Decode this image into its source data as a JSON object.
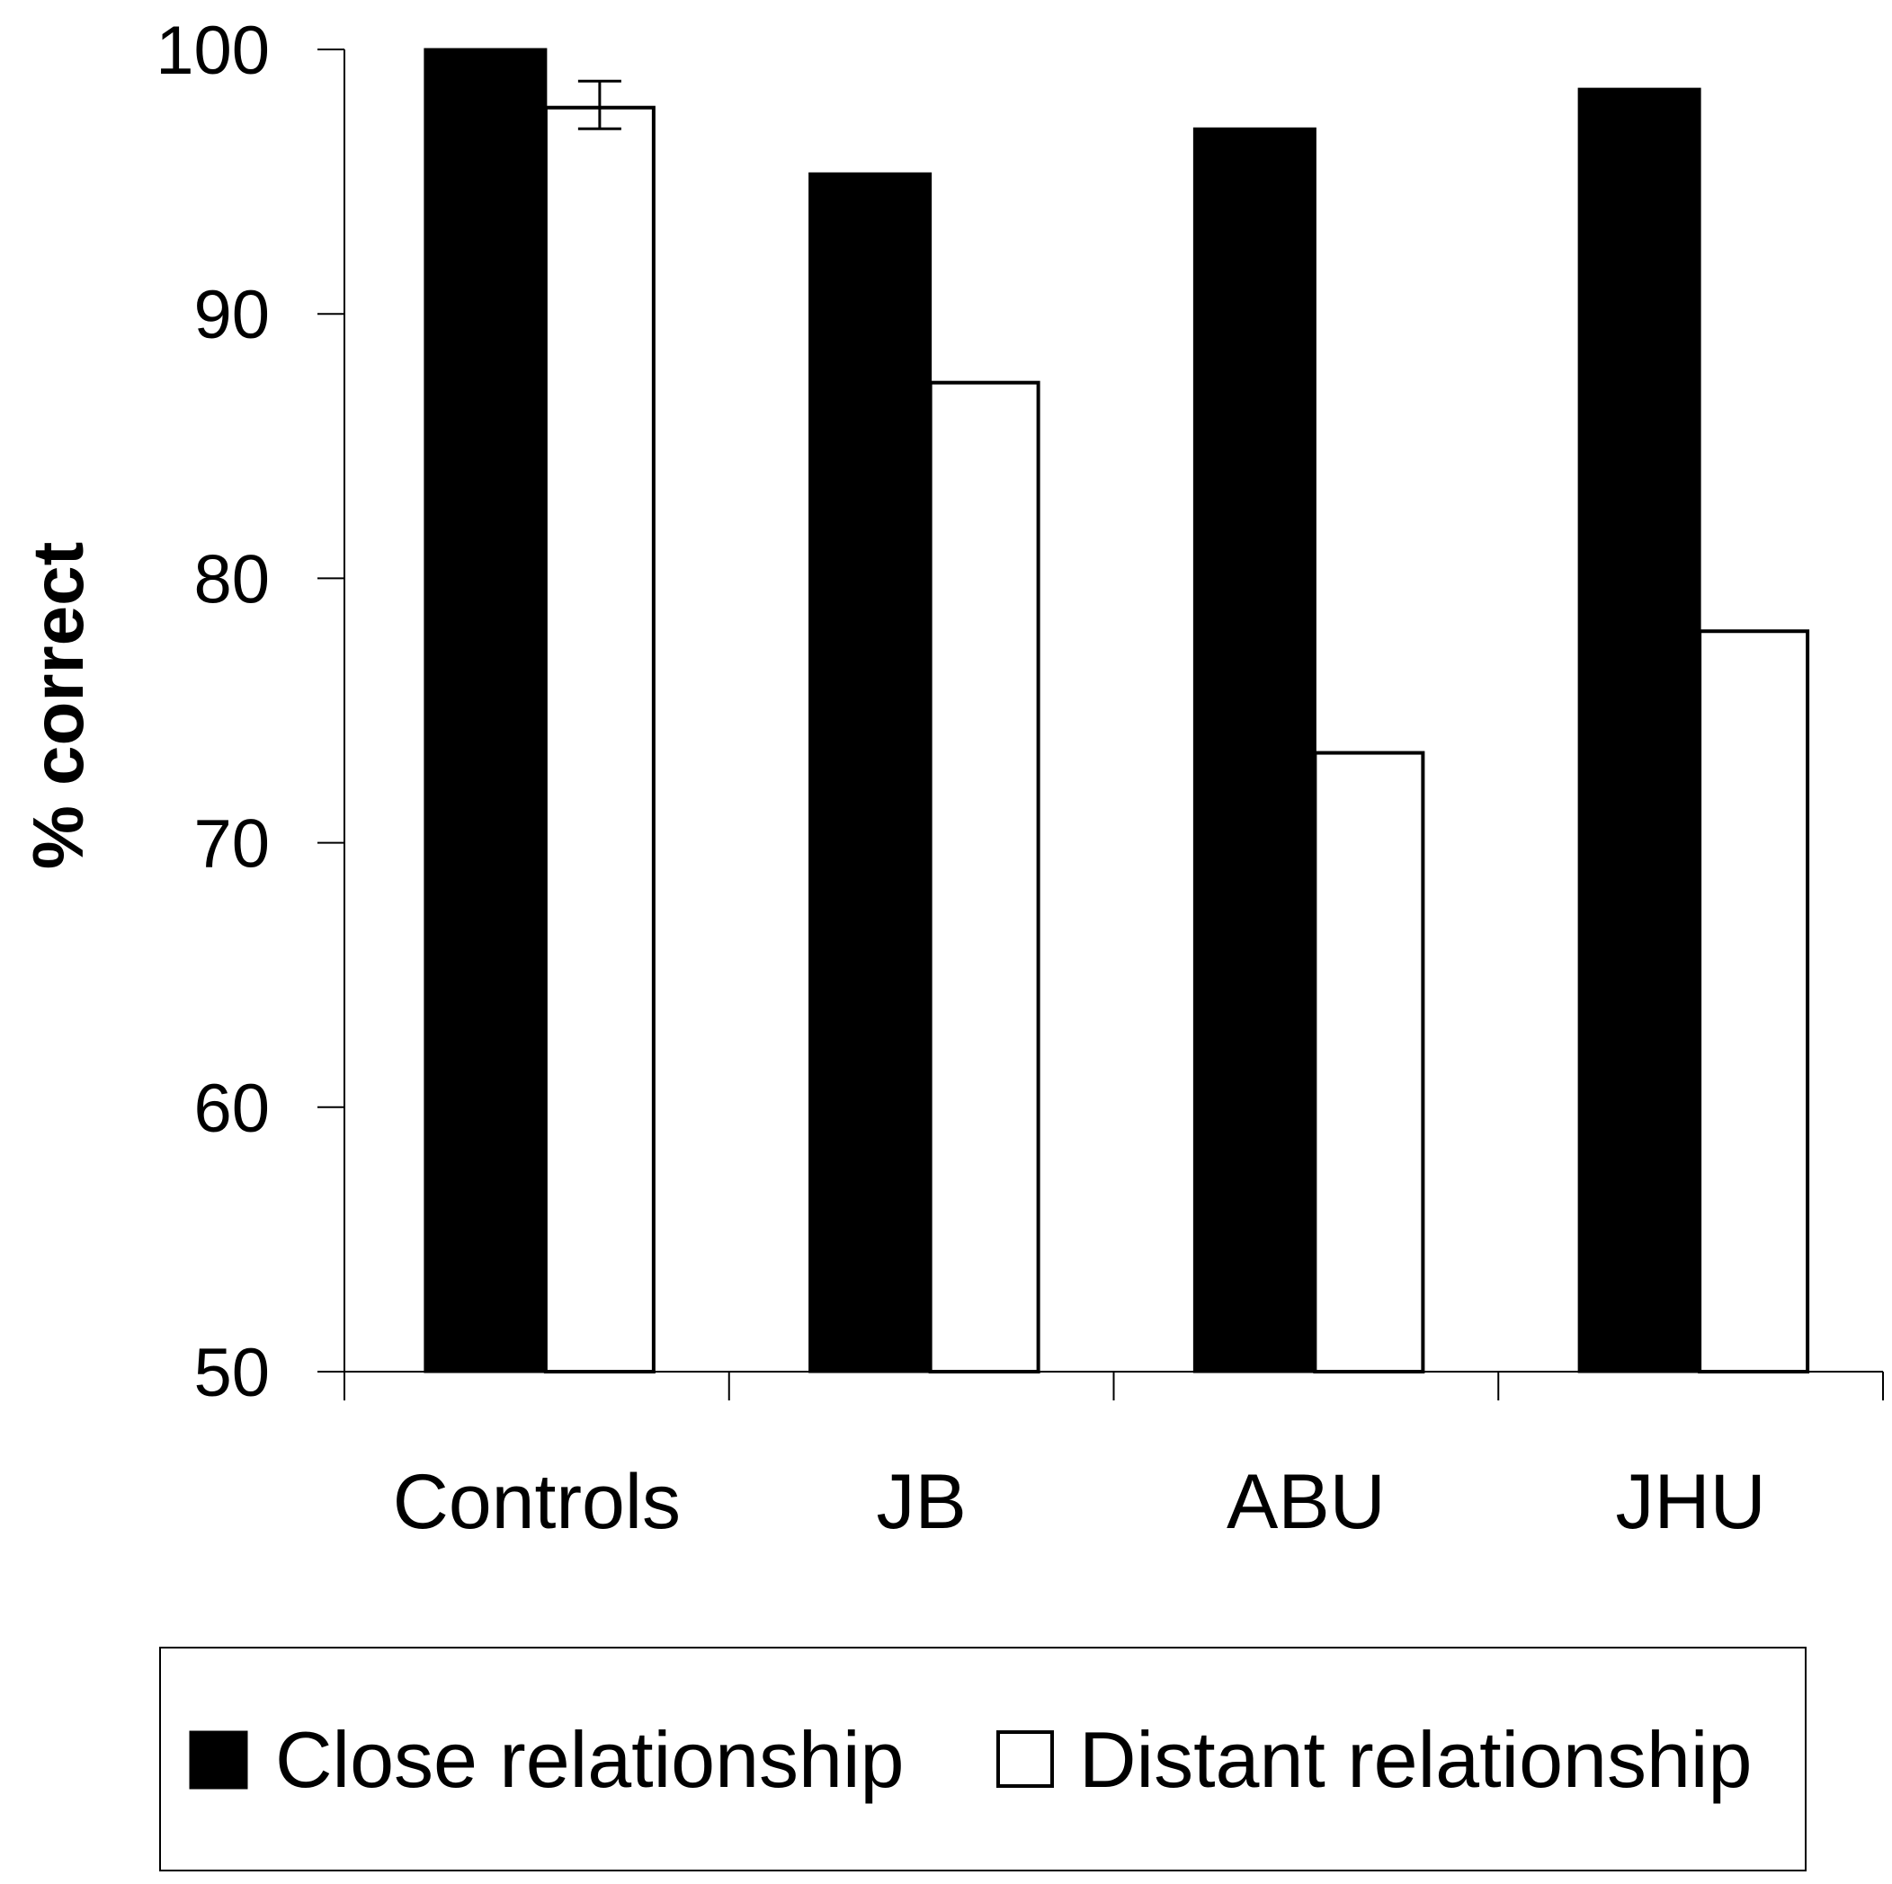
{
  "chart_data": {
    "type": "bar",
    "title": "",
    "xlabel": "",
    "ylabel": "% correct",
    "ylim": [
      50,
      100
    ],
    "yticks": [
      50,
      60,
      70,
      80,
      90,
      100
    ],
    "categories": [
      "Controls",
      "JB",
      "ABU",
      "JHU"
    ],
    "series": [
      {
        "name": "Close relationship",
        "color": "#000000",
        "values": [
          100,
          95.3,
          97.0,
          98.5
        ]
      },
      {
        "name": "Distant relationship",
        "color": "#ffffff",
        "values": [
          97.8,
          87.4,
          73.4,
          78.0
        ],
        "error": [
          [
            97.0,
            98.8
          ],
          null,
          null,
          null
        ]
      }
    ],
    "grid": false,
    "legend_position": "bottom"
  }
}
